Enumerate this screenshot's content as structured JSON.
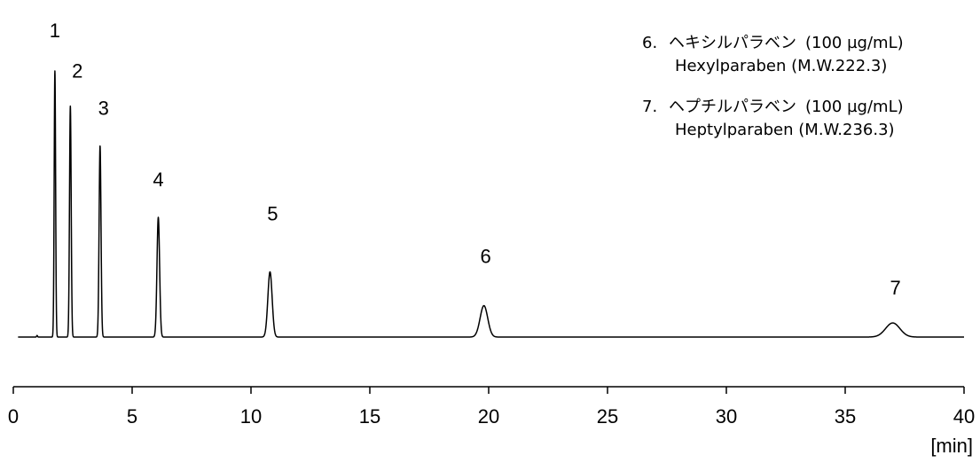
{
  "chart_data": {
    "type": "line",
    "xlabel": "[min]",
    "ylabel": "",
    "xlim": [
      0,
      40
    ],
    "x_ticks": [
      0,
      5,
      10,
      15,
      20,
      25,
      30,
      35,
      40
    ],
    "grid": false,
    "baseline_artifact_x": 1.0,
    "peaks": [
      {
        "label": "1",
        "rt": 1.75,
        "height": 1.0,
        "width": 0.03
      },
      {
        "label": "2",
        "rt": 2.4,
        "height": 0.868,
        "width": 0.035
      },
      {
        "label": "3",
        "rt": 3.65,
        "height": 0.718,
        "width": 0.04
      },
      {
        "label": "4",
        "rt": 6.1,
        "height": 0.45,
        "width": 0.055
      },
      {
        "label": "5",
        "rt": 10.8,
        "height": 0.245,
        "width": 0.09
      },
      {
        "label": "6",
        "rt": 19.8,
        "height": 0.118,
        "width": 0.16
      },
      {
        "label": "7",
        "rt": 37.0,
        "height": 0.053,
        "width": 0.3
      }
    ],
    "legend": [
      {
        "num": "6.",
        "name_ja": "ヘキシルパラベン",
        "conc": "(100 µg/mL)",
        "name_en": "Hexylparaben (M.W.222.3)"
      },
      {
        "num": "7.",
        "name_ja": "ヘプチルパラベン",
        "conc": "(100 µg/mL)",
        "name_en": "Heptylparaben (M.W.236.3)"
      }
    ]
  }
}
